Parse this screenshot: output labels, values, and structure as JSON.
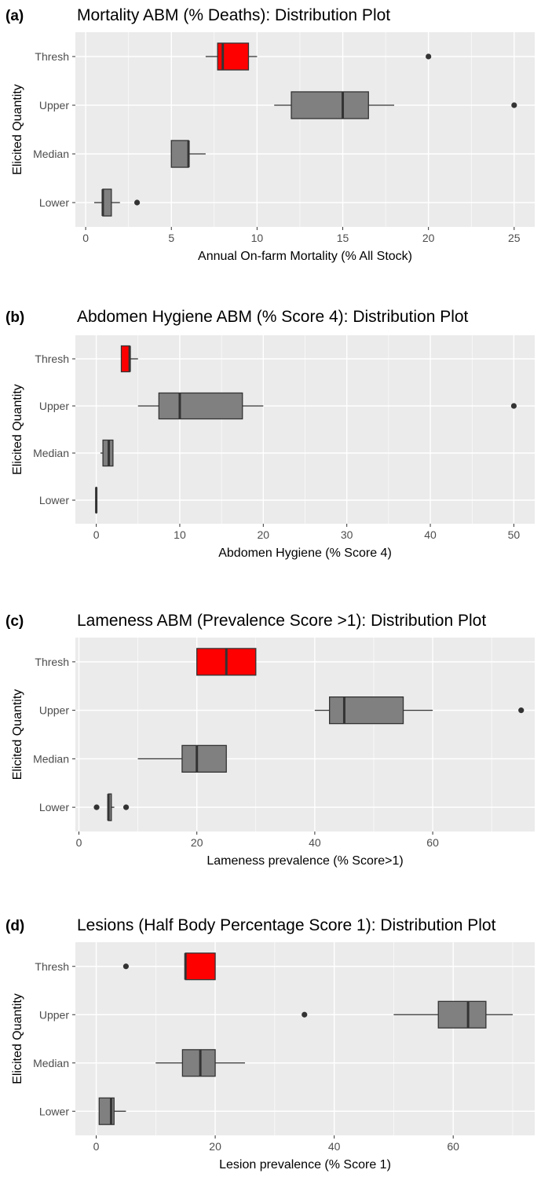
{
  "chart_data": [
    {
      "type": "boxplot",
      "panel_label": "(a)",
      "title": "Mortality ABM (% Deaths): Distribution Plot",
      "xlabel": "Annual On-farm Mortality (% All Stock)",
      "ylabel": "Elicited Quantity",
      "xlim": [
        -0.6,
        26.2
      ],
      "xticks": [
        0,
        5,
        10,
        15,
        20,
        25
      ],
      "xtick_labels": [
        "0",
        "5",
        "10",
        "15",
        "20",
        "25"
      ],
      "grid": true,
      "categories": [
        "Thresh",
        "Upper",
        "Median",
        "Lower"
      ],
      "boxes": [
        {
          "label": "Thresh",
          "whisker_low": 7,
          "q1": 7.7,
          "median": 8,
          "q3": 9.5,
          "whisker_high": 10,
          "outliers": [
            20
          ],
          "fill": "#ff0000"
        },
        {
          "label": "Upper",
          "whisker_low": 11,
          "q1": 12,
          "median": 15,
          "q3": 16.5,
          "whisker_high": 18,
          "outliers": [
            25
          ],
          "fill": "#808080"
        },
        {
          "label": "Median",
          "whisker_low": 5,
          "q1": 5,
          "median": 6,
          "q3": 6,
          "whisker_high": 7,
          "outliers": [],
          "fill": "#808080"
        },
        {
          "label": "Lower",
          "whisker_low": 0.5,
          "q1": 1,
          "median": 1,
          "q3": 1.5,
          "whisker_high": 2,
          "outliers": [
            3
          ],
          "fill": "#808080"
        }
      ]
    },
    {
      "type": "boxplot",
      "panel_label": "(b)",
      "title": "Abdomen Hygiene ABM (% Score 4): Distribution Plot",
      "xlabel": "Abdomen Hygiene (% Score 4)",
      "ylabel": "Elicited Quantity",
      "xlim": [
        -2.5,
        52.5
      ],
      "xticks": [
        0,
        10,
        20,
        30,
        40,
        50
      ],
      "xtick_labels": [
        "0",
        "10",
        "20",
        "30",
        "40",
        "50"
      ],
      "grid": true,
      "categories": [
        "Thresh",
        "Upper",
        "Median",
        "Lower"
      ],
      "boxes": [
        {
          "label": "Thresh",
          "whisker_low": 3,
          "q1": 3,
          "median": 4,
          "q3": 4,
          "whisker_high": 5,
          "outliers": [],
          "fill": "#ff0000"
        },
        {
          "label": "Upper",
          "whisker_low": 5,
          "q1": 7.5,
          "median": 10,
          "q3": 17.5,
          "whisker_high": 20,
          "outliers": [
            50
          ],
          "fill": "#808080"
        },
        {
          "label": "Median",
          "whisker_low": 0.5,
          "q1": 0.8,
          "median": 1.5,
          "q3": 2,
          "whisker_high": 2,
          "outliers": [],
          "fill": "#808080"
        },
        {
          "label": "Lower",
          "whisker_low": 0,
          "q1": 0,
          "median": 0,
          "q3": 0,
          "whisker_high": 0,
          "outliers": [],
          "fill": "#808080"
        }
      ]
    },
    {
      "type": "boxplot",
      "panel_label": "(c)",
      "title": "Lameness ABM (Prevalence Score >1): Distribution Plot",
      "xlabel": "Lameness prevalence (% Score>1)",
      "ylabel": "Elicited Quantity",
      "xlim": [
        -0.6,
        77.3
      ],
      "xticks": [
        0,
        20,
        40,
        60
      ],
      "xtick_labels": [
        "0",
        "20",
        "40",
        "60"
      ],
      "grid": true,
      "categories": [
        "Thresh",
        "Upper",
        "Median",
        "Lower"
      ],
      "boxes": [
        {
          "label": "Thresh",
          "whisker_low": 20,
          "q1": 20,
          "median": 25,
          "q3": 30,
          "whisker_high": 30,
          "outliers": [],
          "fill": "#ff0000"
        },
        {
          "label": "Upper",
          "whisker_low": 40,
          "q1": 42.5,
          "median": 45,
          "q3": 55,
          "whisker_high": 60,
          "outliers": [
            75
          ],
          "fill": "#808080"
        },
        {
          "label": "Median",
          "whisker_low": 10,
          "q1": 17.5,
          "median": 20,
          "q3": 25,
          "whisker_high": 25,
          "outliers": [],
          "fill": "#808080"
        },
        {
          "label": "Lower",
          "whisker_low": 5,
          "q1": 5,
          "median": 5,
          "q3": 5.5,
          "whisker_high": 6,
          "outliers": [
            3,
            8
          ],
          "fill": "#808080"
        }
      ]
    },
    {
      "type": "boxplot",
      "panel_label": "(d)",
      "title": "Lesions (Half Body Percentage Score 1): Distribution Plot",
      "xlabel": "Lesion prevalence (% Score 1)",
      "ylabel": "Elicited Quantity",
      "xlim": [
        -3.5,
        73.7
      ],
      "xticks": [
        0,
        20,
        40,
        60
      ],
      "xtick_labels": [
        "0",
        "20",
        "40",
        "60"
      ],
      "grid": true,
      "categories": [
        "Thresh",
        "Upper",
        "Median",
        "Lower"
      ],
      "boxes": [
        {
          "label": "Thresh",
          "whisker_low": 15,
          "q1": 15,
          "median": 15,
          "q3": 20,
          "whisker_high": 20,
          "outliers": [
            5
          ],
          "fill": "#ff0000"
        },
        {
          "label": "Upper",
          "whisker_low": 50,
          "q1": 57.5,
          "median": 62.5,
          "q3": 65.5,
          "whisker_high": 70,
          "outliers": [
            35
          ],
          "fill": "#808080"
        },
        {
          "label": "Median",
          "whisker_low": 10,
          "q1": 14.5,
          "median": 17.5,
          "q3": 20,
          "whisker_high": 25,
          "outliers": [],
          "fill": "#808080"
        },
        {
          "label": "Lower",
          "whisker_low": 0.5,
          "q1": 0.5,
          "median": 2.5,
          "q3": 3,
          "whisker_high": 5,
          "outliers": [],
          "fill": "#808080"
        }
      ]
    }
  ],
  "colors": {
    "panel_bg": "#ebebeb",
    "grid_major": "#ffffff",
    "box_default": "#808080",
    "box_highlight": "#ff0000",
    "outline": "#333333",
    "tick_text": "#4d4d4d"
  }
}
